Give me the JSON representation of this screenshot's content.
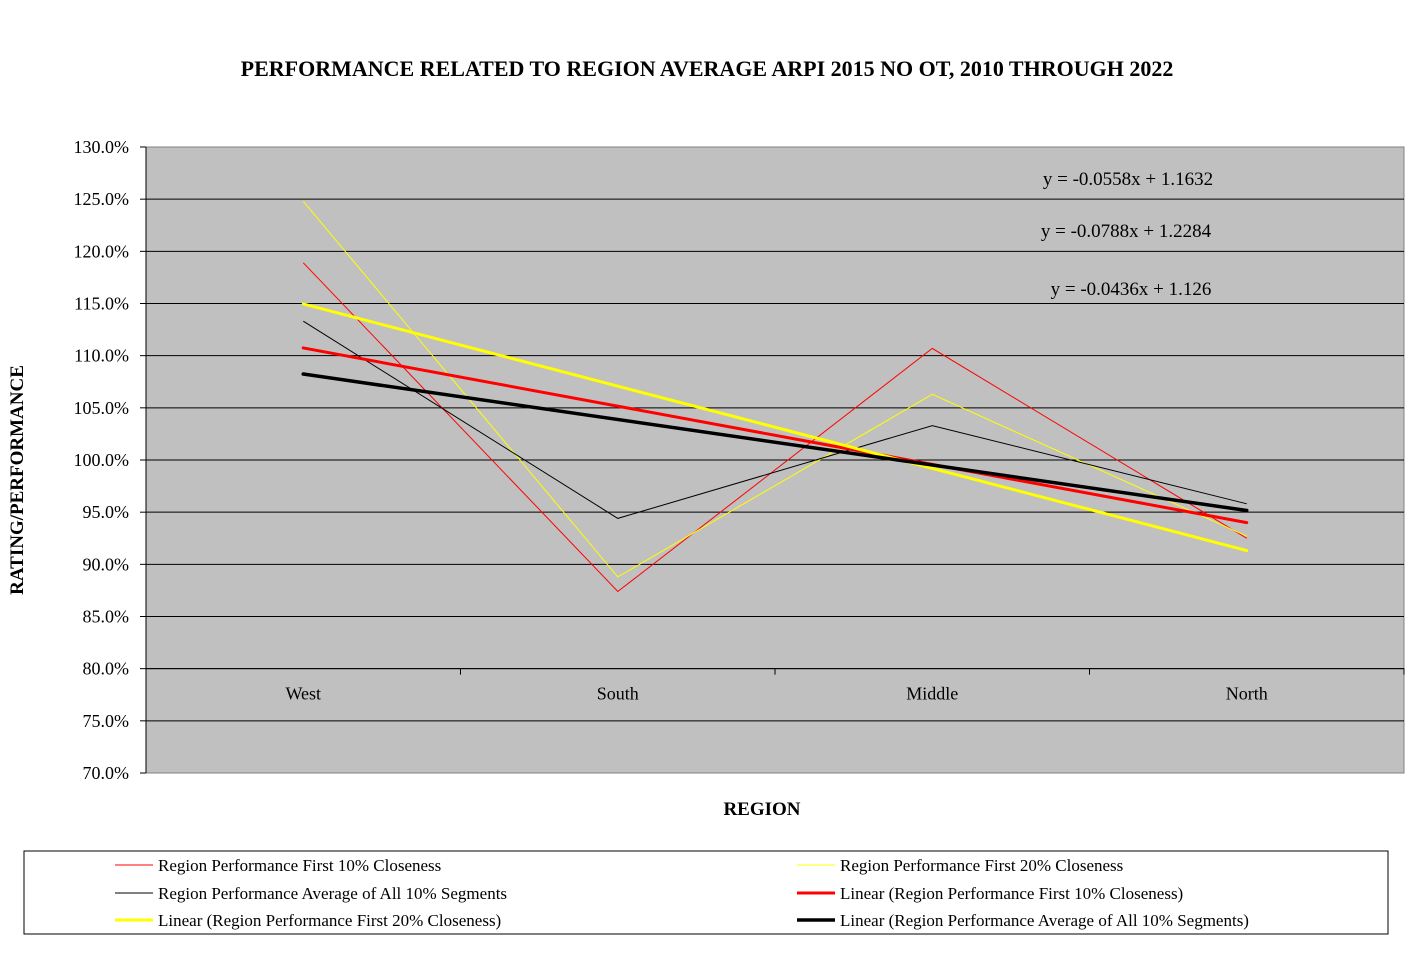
{
  "chart_data": {
    "type": "line",
    "title": "PERFORMANCE RELATED TO REGION AVERAGE ARPI 2015 NO OT, 2010 THROUGH  2022",
    "xlabel": "REGION",
    "ylabel": "RATING/PERFORMANCE",
    "categories": [
      "West",
      "South",
      "Middle",
      "North"
    ],
    "ylim": [
      0.7,
      1.3
    ],
    "ytick_step": 0.05,
    "yticks": [
      "70.0%",
      "75.0%",
      "80.0%",
      "85.0%",
      "90.0%",
      "95.0%",
      "100.0%",
      "105.0%",
      "110.0%",
      "115.0%",
      "120.0%",
      "125.0%",
      "130.0%"
    ],
    "grid": true,
    "plot_background": "#c0c0c0",
    "legend_position": "bottom",
    "series": [
      {
        "name": "Region Performance First 10% Closeness",
        "values": [
          1.189,
          0.874,
          1.107,
          0.925
        ],
        "color": "#ff0000",
        "width": 1
      },
      {
        "name": "Region Performance First 20% Closeness",
        "values": [
          1.248,
          0.888,
          1.063,
          0.927
        ],
        "color": "#ffff00",
        "width": 1
      },
      {
        "name": "Region Performance Average of All 10% Segments",
        "values": [
          1.133,
          0.944,
          1.033,
          0.958
        ],
        "color": "#000000",
        "width": 1
      }
    ],
    "trendlines": [
      {
        "name": "Linear (Region Performance First 10% Closeness)",
        "slope": -0.0558,
        "intercept": 1.1632,
        "color": "#ff0000",
        "width": 3
      },
      {
        "name": "Linear (Region Performance First 20% Closeness)",
        "slope": -0.0788,
        "intercept": 1.2284,
        "color": "#ffff00",
        "width": 3
      },
      {
        "name": "Linear (Region Performance Average of All 10% Segments)",
        "slope": -0.0436,
        "intercept": 1.126,
        "color": "#000000",
        "width": 3.5
      }
    ],
    "equations": [
      "y = -0.0558x + 1.1632",
      "y = -0.0788x + 1.2284",
      "y = -0.0436x + 1.126"
    ],
    "legend": [
      "Region Performance First 10% Closeness",
      "Region Performance First 20% Closeness",
      "Region Performance Average of All 10% Segments",
      "Linear (Region Performance First 10% Closeness)",
      "Linear (Region Performance First 20% Closeness)",
      "Linear (Region Performance Average of All 10% Segments)"
    ]
  }
}
